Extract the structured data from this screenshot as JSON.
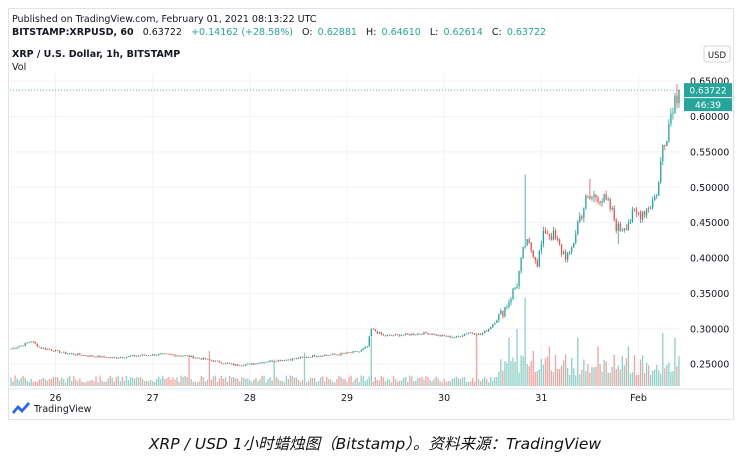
{
  "header": {
    "published": "Published on TradingView.com, February 01, 2021 08:13:22 UTC",
    "symbol": "BITSTAMP:XRPUSD, 60",
    "last": "0.63722",
    "change": "+0.14162 (+28.58%)",
    "ohlc": [
      {
        "label": "O:",
        "value": "0.62881"
      },
      {
        "label": "H:",
        "value": "0.64610"
      },
      {
        "label": "L:",
        "value": "0.62614"
      },
      {
        "label": "C:",
        "value": "0.63722"
      }
    ],
    "title": "XRP / U.S. Dollar, 1h, BITSTAMP",
    "vol_label": "Vol"
  },
  "currency_button": "USD",
  "price_tag": "0.63722",
  "countdown_tag": "46:39",
  "brand": "TradingView",
  "caption": "XRP / USD 1小时蜡烛图（Bitstamp）。资料来源：TradingView",
  "colors": {
    "up": "#26a69a",
    "down": "#ef5350",
    "vol_up": "#8ed1c7",
    "vol_down": "#f4a3a1",
    "grid": "#f0f3fa"
  },
  "chart_data": {
    "type": "candlestick",
    "title": "XRP / U.S. Dollar, 1h, BITSTAMP",
    "interval": "1h",
    "y_axis": {
      "ticks": [
        0.25,
        0.3,
        0.35,
        0.4,
        0.45,
        0.5,
        0.55,
        0.6,
        0.65
      ],
      "ylim": [
        0.215,
        0.66
      ]
    },
    "x_axis": {
      "ticks": [
        "26",
        "27",
        "28",
        "29",
        "30",
        "31",
        "Feb"
      ]
    },
    "anchors_close": [
      [
        0,
        0.272
      ],
      [
        6,
        0.277
      ],
      [
        10,
        0.283
      ],
      [
        14,
        0.274
      ],
      [
        26,
        0.266
      ],
      [
        38,
        0.262
      ],
      [
        50,
        0.259
      ],
      [
        62,
        0.262
      ],
      [
        74,
        0.264
      ],
      [
        86,
        0.262
      ],
      [
        98,
        0.256
      ],
      [
        110,
        0.249
      ],
      [
        118,
        0.25
      ],
      [
        126,
        0.254
      ],
      [
        138,
        0.257
      ],
      [
        150,
        0.262
      ],
      [
        162,
        0.264
      ],
      [
        172,
        0.268
      ],
      [
        176,
        0.275
      ],
      [
        178,
        0.3
      ],
      [
        184,
        0.29
      ],
      [
        196,
        0.292
      ],
      [
        206,
        0.294
      ],
      [
        212,
        0.29
      ],
      [
        220,
        0.288
      ],
      [
        226,
        0.295
      ],
      [
        232,
        0.292
      ],
      [
        236,
        0.3
      ],
      [
        242,
        0.32
      ],
      [
        246,
        0.34
      ],
      [
        250,
        0.365
      ],
      [
        254,
        0.42
      ],
      [
        258,
        0.41
      ],
      [
        260,
        0.395
      ],
      [
        264,
        0.44
      ],
      [
        268,
        0.43
      ],
      [
        272,
        0.41
      ],
      [
        276,
        0.4
      ],
      [
        280,
        0.45
      ],
      [
        284,
        0.48
      ],
      [
        290,
        0.49
      ],
      [
        296,
        0.47
      ],
      [
        300,
        0.44
      ],
      [
        304,
        0.45
      ],
      [
        308,
        0.46
      ],
      [
        314,
        0.47
      ],
      [
        318,
        0.485
      ],
      [
        320,
        0.505
      ],
      [
        322,
        0.56
      ],
      [
        325,
        0.59
      ],
      [
        327,
        0.62
      ],
      [
        330,
        0.637
      ]
    ],
    "spikes": [
      {
        "hour": 254,
        "high": 0.518
      },
      {
        "hour": 286,
        "high": 0.512
      },
      {
        "hour": 300,
        "low": 0.42
      },
      {
        "hour": 329,
        "high": 0.646
      }
    ],
    "volume_peaks": [
      {
        "hour": 88,
        "rel": 0.35
      },
      {
        "hour": 98,
        "rel": 0.4
      },
      {
        "hour": 130,
        "rel": 0.3
      },
      {
        "hour": 145,
        "rel": 0.38
      },
      {
        "hour": 178,
        "rel": 0.55
      },
      {
        "hour": 230,
        "rel": 0.6
      },
      {
        "hour": 246,
        "rel": 0.55
      },
      {
        "hour": 250,
        "rel": 0.65
      },
      {
        "hour": 254,
        "rel": 1.0
      },
      {
        "hour": 258,
        "rel": 0.4
      },
      {
        "hour": 266,
        "rel": 0.45
      },
      {
        "hour": 280,
        "rel": 0.55
      },
      {
        "hour": 290,
        "rel": 0.45
      },
      {
        "hour": 305,
        "rel": 0.45
      },
      {
        "hour": 322,
        "rel": 0.6
      },
      {
        "hour": 328,
        "rel": 0.55
      }
    ],
    "hours_total": 331,
    "day_starts": [
      {
        "label": "26",
        "hour": 11
      },
      {
        "label": "27",
        "hour": 35
      },
      {
        "label": "28",
        "hour": 59
      },
      {
        "label": "29",
        "hour": 83
      },
      {
        "label": "30",
        "hour": 107
      },
      {
        "label": "31",
        "hour": 131
      },
      {
        "label": "Feb",
        "hour": 155
      }
    ]
  }
}
